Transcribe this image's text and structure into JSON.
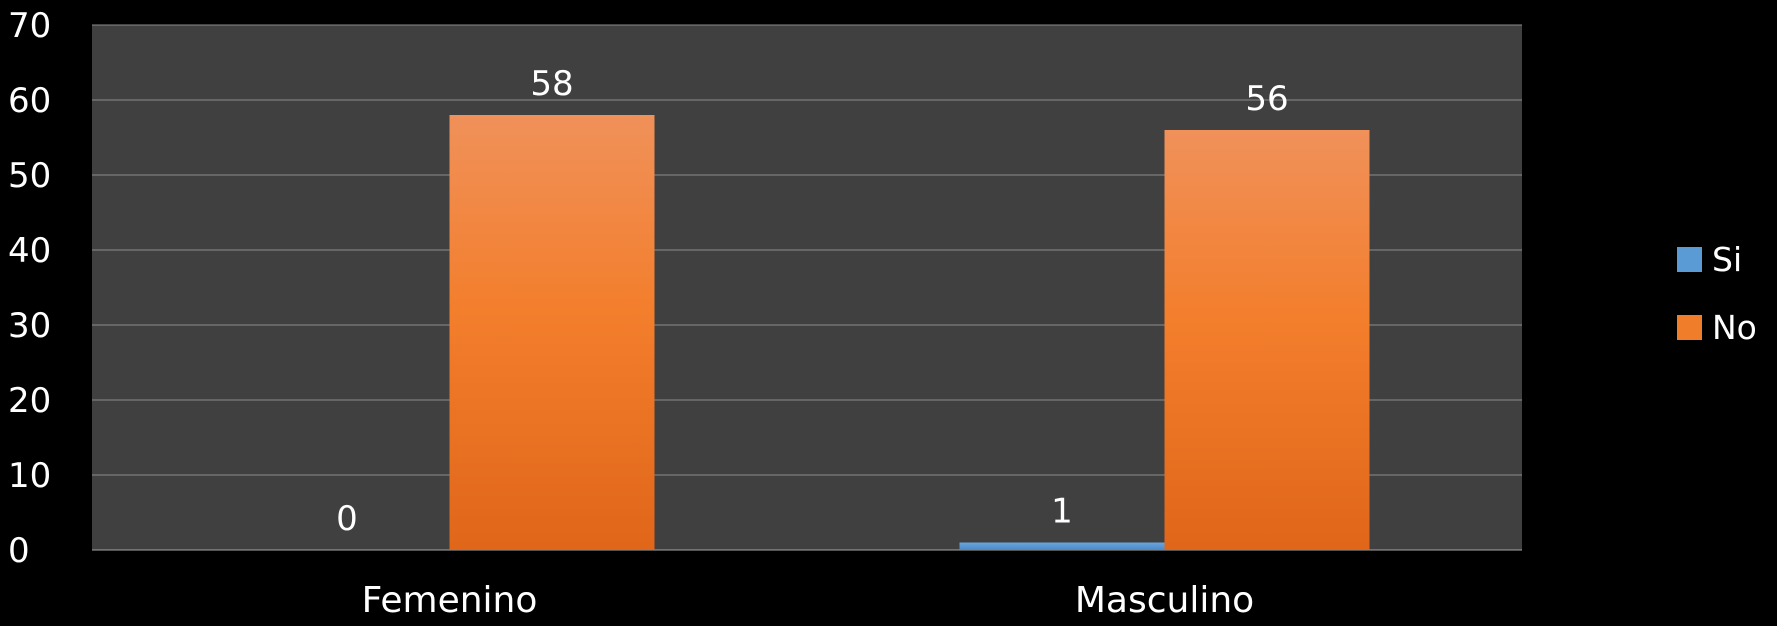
{
  "chart_data": {
    "type": "bar",
    "title": "",
    "xlabel": "",
    "ylabel": "",
    "categories": [
      "Femenino",
      "Masculino"
    ],
    "series": [
      {
        "name": "Si",
        "values": [
          0,
          1
        ],
        "color": "#5b9bd5"
      },
      {
        "name": "No",
        "values": [
          58,
          56
        ],
        "color": "#f07d2a"
      }
    ],
    "ylim": [
      0,
      70
    ],
    "yticks": [
      0,
      10,
      20,
      30,
      40,
      50,
      60,
      70
    ],
    "grid": true,
    "legend_position": "right",
    "plot_background": "#404040",
    "page_background": "#000000"
  }
}
